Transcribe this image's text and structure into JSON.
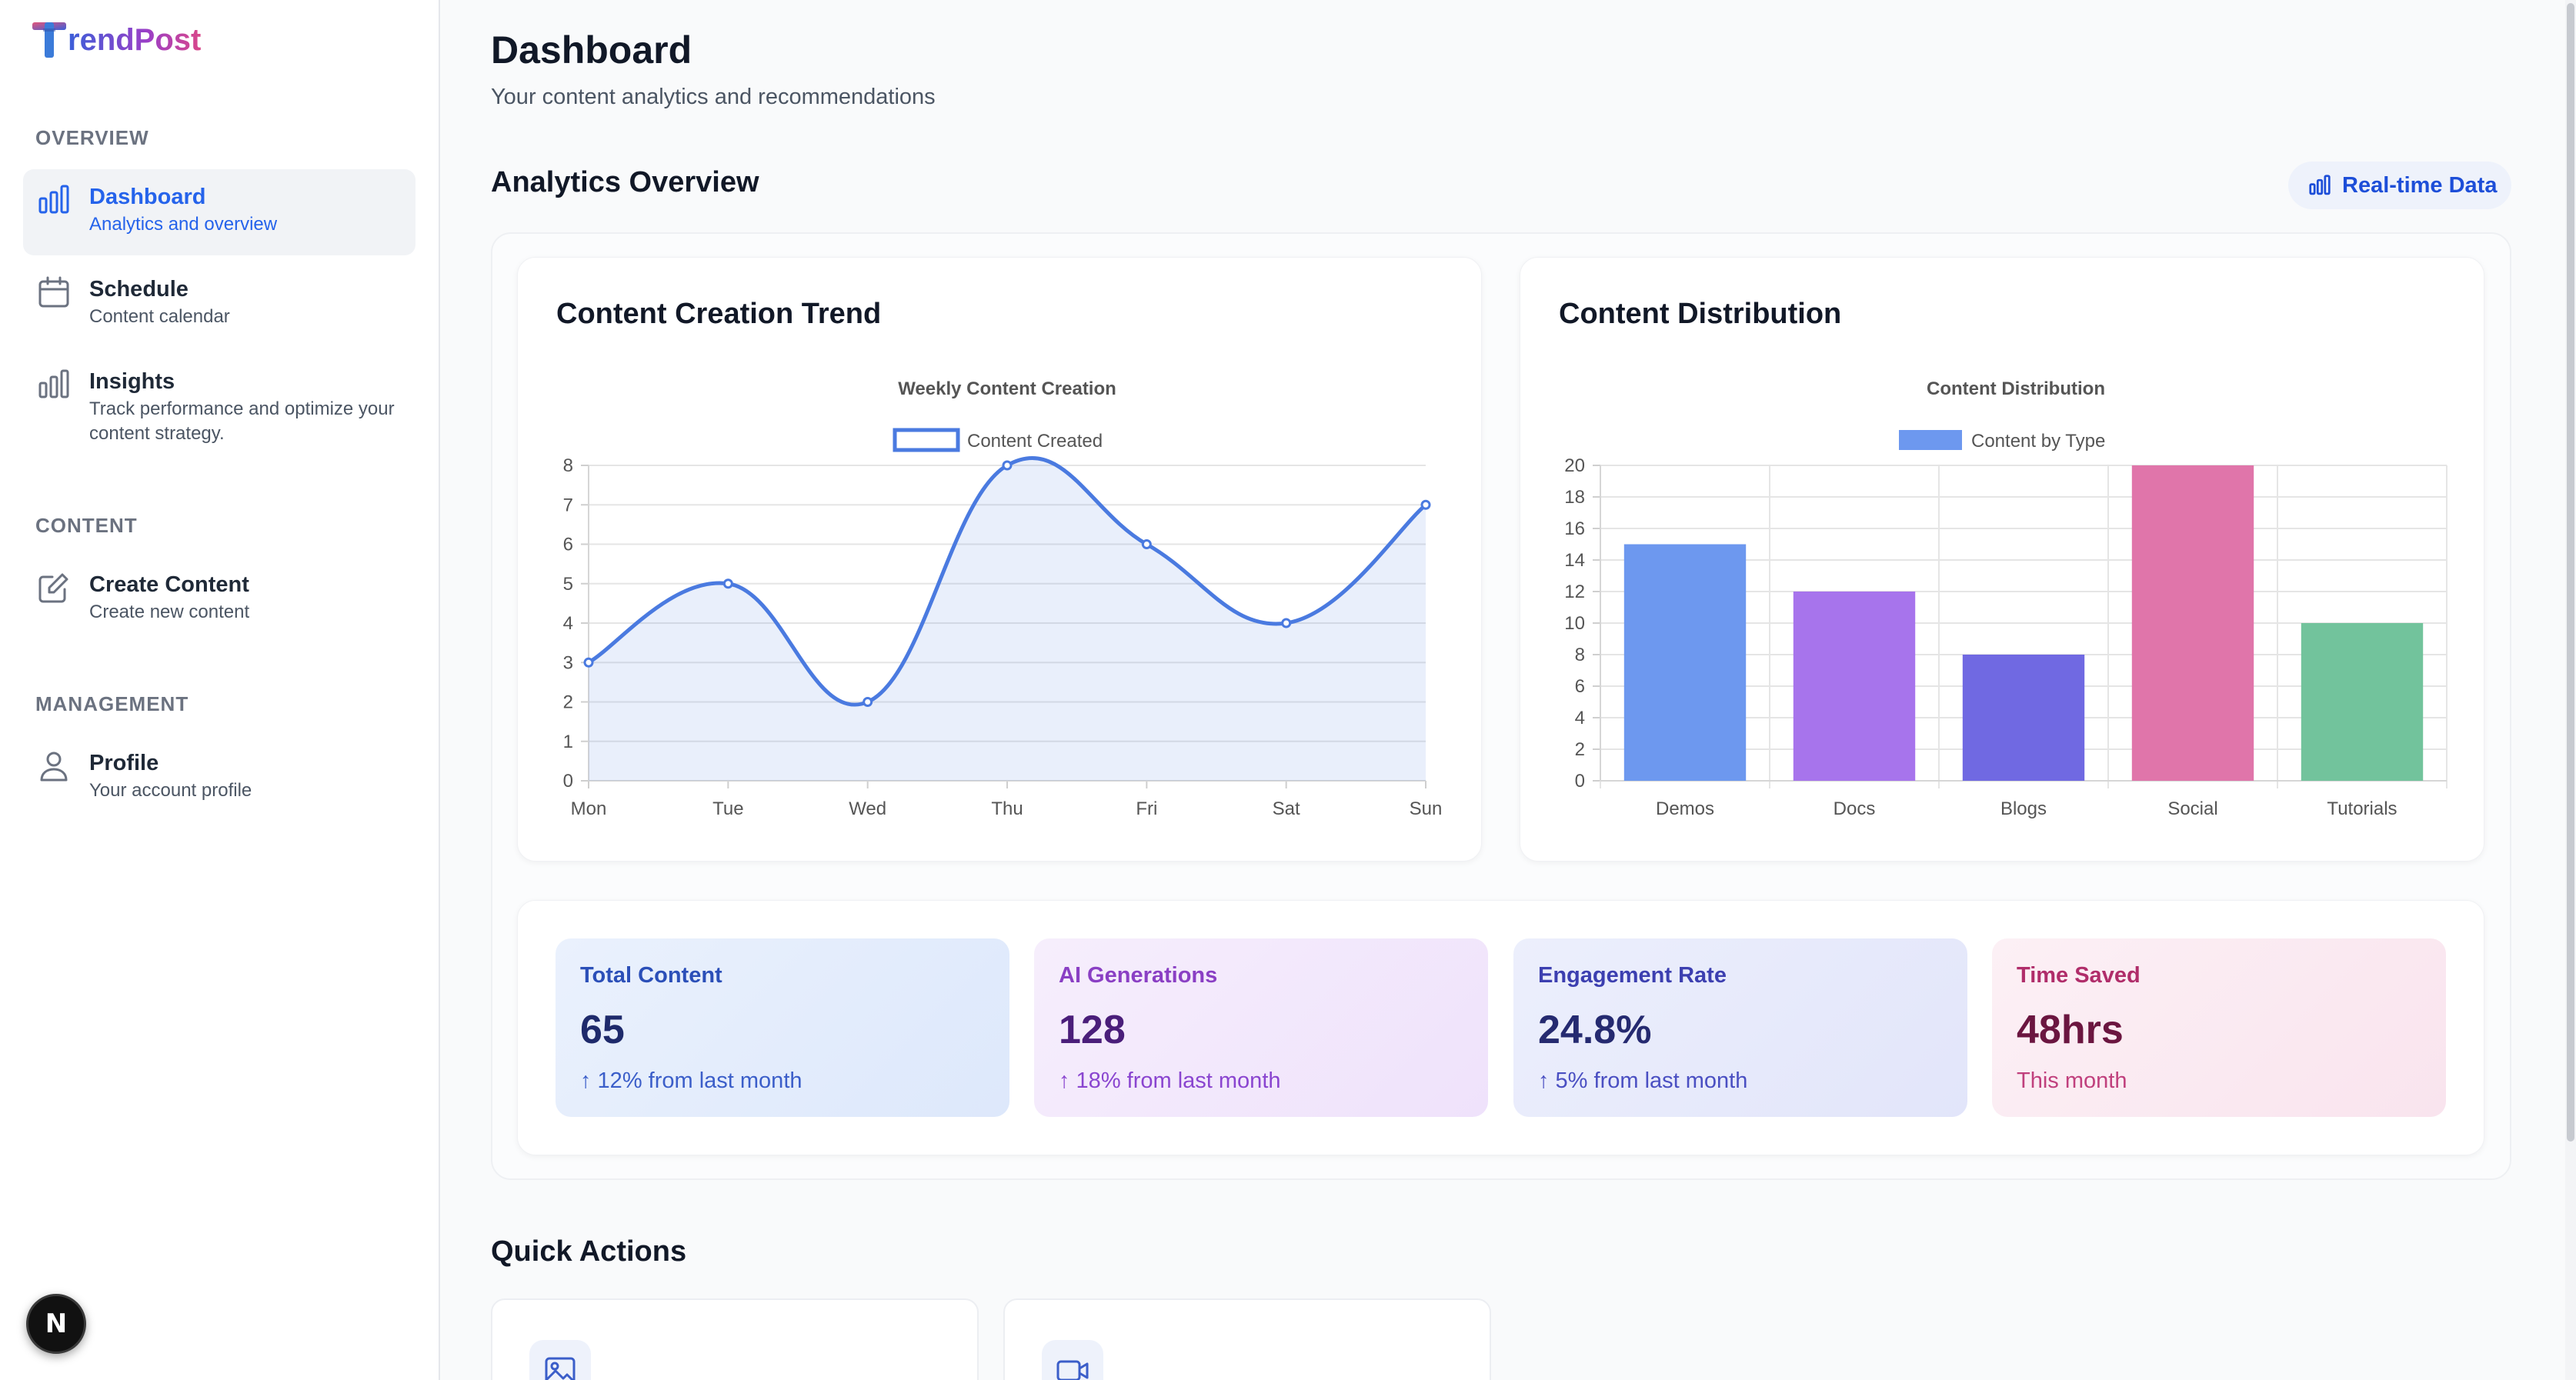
{
  "app": {
    "brand": "rendPost",
    "brand_initial": "T"
  },
  "sidebar": {
    "sections": [
      {
        "label": "OVERVIEW"
      },
      {
        "label": "CONTENT"
      },
      {
        "label": "MANAGEMENT"
      }
    ],
    "items": [
      {
        "title": "Dashboard",
        "desc": "Analytics and overview",
        "icon": "bar-chart-icon",
        "active": true
      },
      {
        "title": "Schedule",
        "desc": "Content calendar",
        "icon": "calendar-icon"
      },
      {
        "title": "Insights",
        "desc": "Track performance and optimize your content strategy.",
        "icon": "bar-chart-icon"
      },
      {
        "title": "Create Content",
        "desc": "Create new content",
        "icon": "edit-icon"
      },
      {
        "title": "Profile",
        "desc": "Your account profile",
        "icon": "user-icon"
      }
    ],
    "badge": "N"
  },
  "header": {
    "title": "Dashboard",
    "subtitle": "Your content analytics and recommendations"
  },
  "analytics": {
    "title": "Analytics Overview",
    "realtime_label": "Real-time Data"
  },
  "trend_card": {
    "title": "Content Creation Trend"
  },
  "dist_card": {
    "title": "Content Distribution"
  },
  "chart_data": [
    {
      "type": "line",
      "title": "Weekly Content Creation",
      "series": [
        {
          "name": "Content Created",
          "values": [
            3,
            5,
            2,
            8,
            6,
            4,
            7
          ]
        }
      ],
      "categories": [
        "Mon",
        "Tue",
        "Wed",
        "Thu",
        "Fri",
        "Sat",
        "Sun"
      ],
      "ylim": [
        0,
        8
      ],
      "yticks": [
        0,
        1,
        2,
        3,
        4,
        5,
        6,
        7,
        8
      ],
      "fill": true,
      "grid": true,
      "legend": "top",
      "color": "#4a7ae0"
    },
    {
      "type": "bar",
      "title": "Content Distribution",
      "series": [
        {
          "name": "Content by Type",
          "values": [
            15,
            12,
            8,
            20,
            10
          ]
        }
      ],
      "categories": [
        "Demos",
        "Docs",
        "Blogs",
        "Social",
        "Tutorials"
      ],
      "ylim": [
        0,
        20
      ],
      "yticks": [
        0,
        2,
        4,
        6,
        8,
        10,
        12,
        14,
        16,
        18,
        20
      ],
      "colors": [
        "#6d98ef",
        "#a774ec",
        "#7069e2",
        "#e075aa",
        "#72c39c"
      ],
      "legend_color": "#6d98ef",
      "grid": true,
      "legend": "top"
    }
  ],
  "stats": [
    {
      "label": "Total Content",
      "value": "65",
      "change": "↑ 12% from last month",
      "label_color": "#2b4fb8",
      "value_color": "#1e2a6b",
      "change_color": "#3b5ec9"
    },
    {
      "label": "AI Generations",
      "value": "128",
      "change": "↑ 18% from last month",
      "label_color": "#8a3fc4",
      "value_color": "#4a1e7a",
      "change_color": "#8a45d0"
    },
    {
      "label": "Engagement Rate",
      "value": "24.8%",
      "change": "↑ 5% from last month",
      "label_color": "#3c3fb0",
      "value_color": "#252a70",
      "change_color": "#4a4fc2"
    },
    {
      "label": "Time Saved",
      "value": "48hrs",
      "change": "This month",
      "label_color": "#b02d6a",
      "value_color": "#6b1640",
      "change_color": "#c0407d"
    }
  ],
  "quick_actions": {
    "title": "Quick Actions"
  }
}
